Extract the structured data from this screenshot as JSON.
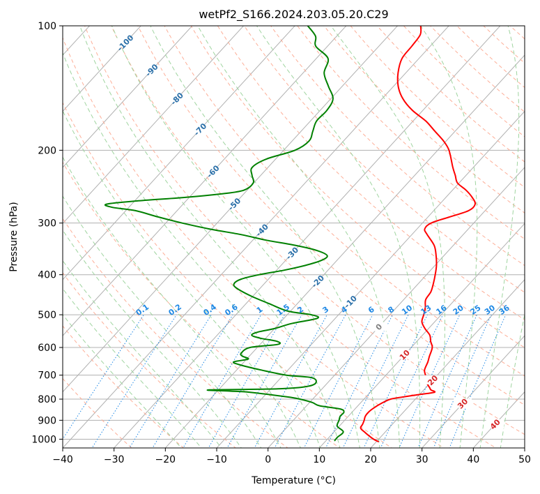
{
  "chart_data": {
    "type": "line",
    "title": "wetPf2_S166.2024.203.05.20.C29",
    "xlabel": "Temperature (°C)",
    "ylabel": "Pressure (hPa)",
    "xlim": [
      -40,
      50
    ],
    "ylim": [
      1050,
      100
    ],
    "yscale": "log",
    "grid": true,
    "x_ticks": [
      "−40",
      "−30",
      "−20",
      "−10",
      "0",
      "10",
      "20",
      "30",
      "40",
      "50"
    ],
    "x_tick_values": [
      -40,
      -30,
      -20,
      -10,
      0,
      10,
      20,
      30,
      40,
      50
    ],
    "y_ticks": [
      "100",
      "200",
      "300",
      "400",
      "500",
      "600",
      "700",
      "800",
      "900",
      "1000"
    ],
    "y_tick_values": [
      100,
      200,
      300,
      400,
      500,
      600,
      700,
      800,
      900,
      1000
    ],
    "isotherm_labels": [
      "-100",
      "-90",
      "-80",
      "-70",
      "-60",
      "-50",
      "-40",
      "-30",
      "-20",
      "-10",
      "0",
      "10",
      "20",
      "30",
      "40"
    ],
    "mixing_ratio_labels": [
      "0.1",
      "0.2",
      "0.4",
      "0.6",
      "1",
      "1.5",
      "2",
      "3",
      "4",
      "6",
      "8",
      "10",
      "13",
      "16",
      "20",
      "25",
      "30",
      "36"
    ],
    "colors": {
      "temperature": "#ff0000",
      "dewpoint": "#008000",
      "isotherm_cold": "#2a6fa8",
      "isotherm_warm": "#d62728",
      "isotherm_zero": "#808080",
      "mixing_ratio": "#1e88e5",
      "dry_adiabat": "#fdae97",
      "moist_adiabat": "#9fd49f",
      "grid": "#b0b0b0"
    },
    "series": [
      {
        "role": "temperature",
        "p": [
          1015,
          1000,
          980,
          960,
          940,
          920,
          900,
          880,
          860,
          840,
          820,
          800,
          790,
          780,
          770,
          760,
          750,
          730,
          700,
          680,
          650,
          630,
          600,
          580,
          560,
          540,
          520,
          500,
          480,
          460,
          440,
          420,
          400,
          380,
          360,
          340,
          320,
          310,
          300,
          290,
          280,
          270,
          260,
          250,
          240,
          230,
          220,
          200,
          190,
          180,
          170,
          160,
          150,
          140,
          130,
          120,
          112,
          105,
          100
        ],
        "x": [
          20.5,
          19,
          17.4,
          15.9,
          14.5,
          14.2,
          13.8,
          13.3,
          13.2,
          13.5,
          14.1,
          15.2,
          17.3,
          19.9,
          22.5,
          21.4,
          20.7,
          19.3,
          17.7,
          16.6,
          15.8,
          15.1,
          14.1,
          12.7,
          11.4,
          9.3,
          7.5,
          6.6,
          5.6,
          4.3,
          3.9,
          2.9,
          1.7,
          0.3,
          -1.5,
          -3.7,
          -7,
          -8.5,
          -8.3,
          -5.8,
          -3.2,
          -3.1,
          -4.9,
          -7.3,
          -10.3,
          -12.1,
          -14,
          -17.8,
          -20.5,
          -23.9,
          -27.5,
          -32.1,
          -36,
          -39.1,
          -41.5,
          -43.3,
          -43.6,
          -44,
          -45.5
        ]
      },
      {
        "role": "dewpoint",
        "p": [
          1010,
          990,
          960,
          930,
          900,
          880,
          860,
          845,
          830,
          815,
          800,
          790,
          770,
          765,
          760,
          755,
          745,
          730,
          710,
          700,
          680,
          660,
          650,
          640,
          630,
          620,
          600,
          590,
          580,
          570,
          560,
          550,
          540,
          525,
          510,
          500,
          490,
          470,
          450,
          430,
          420,
          410,
          400,
          390,
          380,
          370,
          360,
          350,
          340,
          330,
          320,
          310,
          300,
          290,
          280,
          275,
          270,
          265,
          260,
          255,
          250,
          240,
          230,
          220,
          210,
          200,
          190,
          180,
          170,
          160,
          150,
          140,
          130,
          120,
          112,
          106,
          100
        ],
        "x": [
          11.7,
          11.6,
          11.8,
          9.6,
          8.9,
          8.4,
          8.4,
          7.1,
          2.5,
          0.5,
          -2.5,
          -5.4,
          -13.4,
          -17.6,
          -21.8,
          -8.1,
          -3.3,
          -2.3,
          -4,
          -9.4,
          -15.3,
          -20.5,
          -22,
          -19.7,
          -21.3,
          -22.1,
          -21.4,
          -16.6,
          -17.2,
          -21,
          -23.3,
          -22.5,
          -20,
          -17.6,
          -13.5,
          -15.3,
          -20.5,
          -25.5,
          -30.5,
          -34.8,
          -35.9,
          -35.3,
          -32.6,
          -28.5,
          -25.3,
          -23.1,
          -22.7,
          -25.5,
          -30.6,
          -37.4,
          -43.2,
          -50.5,
          -56.8,
          -62.6,
          -68.1,
          -73.1,
          -74.9,
          -69.3,
          -60.6,
          -54.4,
          -50.7,
          -50.1,
          -51.7,
          -53.1,
          -51.8,
          -47.8,
          -46.7,
          -47.7,
          -48.8,
          -48.7,
          -49.6,
          -52.7,
          -55.9,
          -57.7,
          -62.3,
          -64.1,
          -67.5
        ]
      }
    ]
  }
}
